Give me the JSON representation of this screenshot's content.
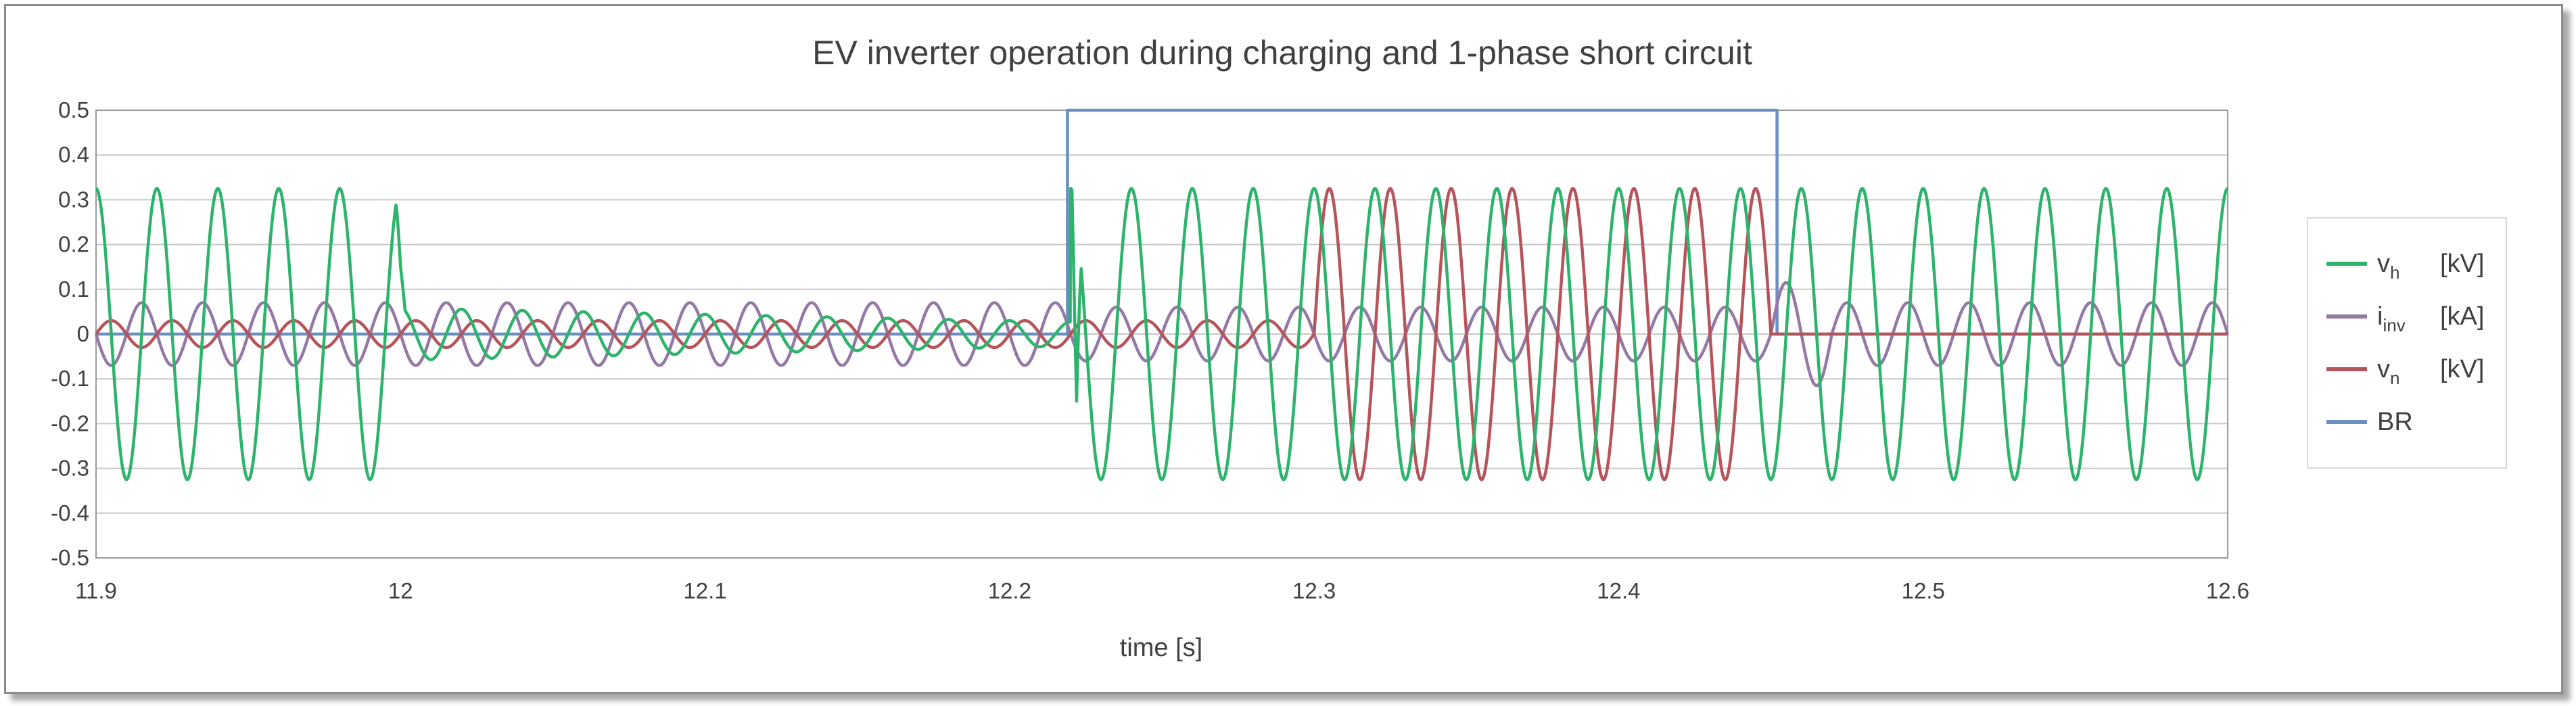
{
  "chart_data": {
    "type": "line",
    "title": "EV inverter operation during charging and 1-phase short circuit",
    "xlabel": "time [s]",
    "ylabel": "",
    "xlim": [
      11.9,
      12.6
    ],
    "ylim": [
      -0.5,
      0.5
    ],
    "x_ticks": [
      "11.9",
      "12",
      "12.1",
      "12.2",
      "12.3",
      "12.4",
      "12.5",
      "12.6"
    ],
    "y_ticks": [
      "0.5",
      "0.4",
      "0.3",
      "0.2",
      "0.1",
      "0",
      "-0.1",
      "-0.2",
      "-0.3",
      "-0.4",
      "-0.5"
    ],
    "grid": "horizontal",
    "legend_position": "right",
    "series": [
      {
        "name": "vh [kV]",
        "legend_main": "v",
        "legend_sub": "h",
        "legend_unit": "[kV]",
        "color": "#2db36b",
        "waveform": "sine",
        "frequency_hz": 50,
        "segments": [
          {
            "t_start": 11.9,
            "t_end": 12.0,
            "amplitude": 0.325
          },
          {
            "t_start": 12.0,
            "t_end": 12.22,
            "amplitude": 0.045,
            "note": "decaying"
          },
          {
            "t_start": 12.22,
            "t_end": 12.6,
            "amplitude": 0.325
          }
        ],
        "transients": [
          {
            "t": 12.0,
            "y": 0.15
          },
          {
            "t": 12.222,
            "y": -0.15
          }
        ]
      },
      {
        "name": "iinv [kA]",
        "legend_main": "i",
        "legend_sub": "inv",
        "legend_unit": "[kA]",
        "color": "#9478a6",
        "waveform": "sine",
        "frequency_hz": 50,
        "segments": [
          {
            "t_start": 11.9,
            "t_end": 12.22,
            "amplitude": 0.07
          },
          {
            "t_start": 12.22,
            "t_end": 12.45,
            "amplitude": 0.06
          },
          {
            "t_start": 12.45,
            "t_end": 12.47,
            "amplitude": 0.115
          },
          {
            "t_start": 12.47,
            "t_end": 12.6,
            "amplitude": 0.07
          }
        ]
      },
      {
        "name": "vn [kV]",
        "legend_main": "v",
        "legend_sub": "n",
        "legend_unit": "[kV]",
        "color": "#b5545a",
        "waveform": "sine",
        "frequency_hz": 50,
        "segments": [
          {
            "t_start": 11.9,
            "t_end": 12.3,
            "amplitude": 0.03
          },
          {
            "t_start": 12.3,
            "t_end": 12.45,
            "amplitude": 0.325
          },
          {
            "t_start": 12.45,
            "t_end": 12.6,
            "amplitude": 0.0
          }
        ]
      },
      {
        "name": "BR",
        "legend_main": "BR",
        "legend_sub": "",
        "legend_unit": "",
        "color": "#6a8fc0",
        "waveform": "step",
        "points": [
          [
            11.9,
            0
          ],
          [
            12.219,
            0
          ],
          [
            12.219,
            0.5
          ],
          [
            12.452,
            0.5
          ],
          [
            12.452,
            0
          ],
          [
            12.6,
            0
          ]
        ]
      }
    ]
  }
}
